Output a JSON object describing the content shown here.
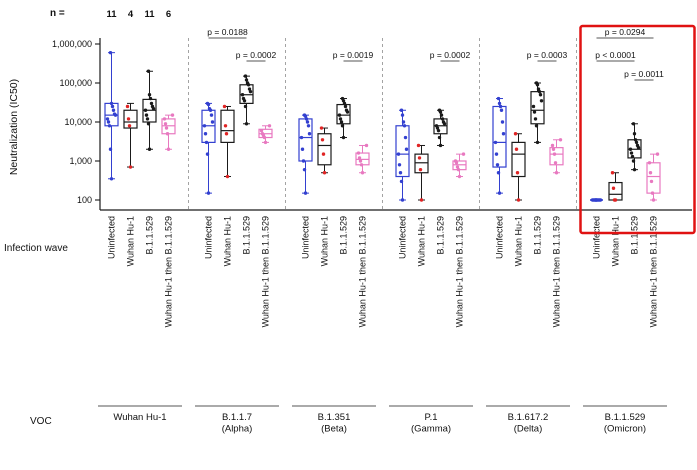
{
  "figure": {
    "ylabel": "Neutralization (IC50)",
    "x_axis_label": "Infection wave",
    "voc_axis_label": "VOC",
    "n_label": "n =",
    "n_values": [
      "11",
      "4",
      "11",
      "6"
    ],
    "y_ticks": [
      "100",
      "1,000",
      "10,000",
      "100,000",
      "1,000,000"
    ]
  },
  "colors": {
    "uninfected": "#3340d0",
    "black_box": "#1a1a1a",
    "wuhan_points": "#e02424",
    "b11529_points": "#1a1a1a",
    "combo": "#e879c0",
    "highlight": "#e01212",
    "separator": "#9a9a9a",
    "bracket": "#555555",
    "axis": "#1a1a1a"
  },
  "chart_data": {
    "type": "boxplot-log",
    "title": "",
    "ylabel": "Neutralization (IC50)",
    "xlabel": "Infection wave",
    "y_scale": "log10",
    "ylim": [
      100,
      1000000
    ],
    "y_tick_values": [
      100,
      1000,
      10000,
      100000,
      1000000
    ],
    "categories": [
      "Uninfected",
      "Wuhan Hu-1",
      "B.1.1.529",
      "Wuhan Hu-1 then B.1.1.529"
    ],
    "n_per_category": [
      11,
      4,
      11,
      6
    ],
    "category_box_colors": [
      "#3340d0",
      "#1a1a1a",
      "#1a1a1a",
      "#e879c0"
    ],
    "category_point_colors": [
      "#3340d0",
      "#e02424",
      "#1a1a1a",
      "#e879c0"
    ],
    "groups": [
      {
        "voc": [
          "Wuhan Hu-1"
        ],
        "highlighted": false,
        "boxes": [
          {
            "stats": [
              350,
              8000,
              15000,
              30000,
              600000
            ],
            "points": [
              350,
              2000,
              8000,
              10000,
              12000,
              15000,
              16000,
              20000,
              25000,
              30000,
              600000
            ]
          },
          {
            "stats": [
              700,
              7000,
              10000,
              20000,
              30000
            ],
            "points": [
              700,
              8000,
              12000,
              25000
            ]
          },
          {
            "stats": [
              2000,
              10000,
              20000,
              38000,
              200000
            ],
            "points": [
              2000,
              9000,
              12000,
              15000,
              20000,
              22000,
              25000,
              30000,
              40000,
              50000,
              200000
            ]
          },
          {
            "stats": [
              2000,
              5000,
              8000,
              12000,
              15000
            ],
            "points": [
              2000,
              5000,
              7000,
              9000,
              12000,
              15000
            ]
          }
        ]
      },
      {
        "voc": [
          "B.1.1.7",
          "(Alpha)"
        ],
        "highlighted": false,
        "boxes": [
          {
            "stats": [
              150,
              3000,
              8000,
              20000,
              30000
            ],
            "points": [
              150,
              1500,
              3000,
              5000,
              8000,
              10000,
              15000,
              20000,
              22000,
              28000,
              30000
            ]
          },
          {
            "stats": [
              400,
              3000,
              6000,
              20000,
              25000
            ],
            "points": [
              400,
              5000,
              8000,
              25000
            ]
          },
          {
            "stats": [
              9000,
              30000,
              50000,
              90000,
              150000
            ],
            "points": [
              9000,
              25000,
              35000,
              40000,
              50000,
              60000,
              70000,
              90000,
              100000,
              120000,
              150000
            ]
          },
          {
            "stats": [
              3000,
              4000,
              5000,
              6500,
              8000
            ],
            "points": [
              3000,
              4000,
              4500,
              5000,
              6000,
              8000
            ]
          }
        ]
      },
      {
        "voc": [
          "B.1.351",
          "(Beta)"
        ],
        "highlighted": false,
        "boxes": [
          {
            "stats": [
              150,
              1000,
              4000,
              12000,
              15000
            ],
            "points": [
              150,
              600,
              1000,
              2000,
              4000,
              5000,
              8000,
              10000,
              12000,
              14000,
              15000
            ]
          },
          {
            "stats": [
              500,
              800,
              2500,
              5000,
              7000
            ],
            "points": [
              500,
              1500,
              3500,
              7000
            ]
          },
          {
            "stats": [
              4000,
              9000,
              15000,
              28000,
              40000
            ],
            "points": [
              4000,
              8000,
              10000,
              12000,
              15000,
              18000,
              20000,
              25000,
              30000,
              35000,
              40000
            ]
          },
          {
            "stats": [
              500,
              800,
              1100,
              1600,
              2500
            ],
            "points": [
              500,
              800,
              1000,
              1200,
              1600,
              2500
            ]
          }
        ]
      },
      {
        "voc": [
          "P.1",
          "(Gamma)"
        ],
        "highlighted": false,
        "boxes": [
          {
            "stats": [
              100,
              400,
              1500,
              8000,
              20000
            ],
            "points": [
              100,
              300,
              500,
              800,
              1500,
              2000,
              4000,
              8000,
              10000,
              15000,
              20000
            ]
          },
          {
            "stats": [
              100,
              500,
              900,
              1500,
              2500
            ],
            "points": [
              100,
              600,
              1200,
              2500
            ]
          },
          {
            "stats": [
              2500,
              5000,
              8000,
              12000,
              20000
            ],
            "points": [
              2500,
              4000,
              6000,
              7000,
              8000,
              9000,
              10000,
              12000,
              15000,
              18000,
              20000
            ]
          },
          {
            "stats": [
              400,
              600,
              800,
              1000,
              1500
            ],
            "points": [
              400,
              600,
              700,
              900,
              1000,
              1500
            ]
          }
        ]
      },
      {
        "voc": [
          "B.1.617.2",
          "(Delta)"
        ],
        "highlighted": false,
        "boxes": [
          {
            "stats": [
              150,
              700,
              3000,
              25000,
              40000
            ],
            "points": [
              150,
              500,
              800,
              1500,
              3000,
              5000,
              10000,
              20000,
              25000,
              30000,
              40000
            ]
          },
          {
            "stats": [
              100,
              400,
              1500,
              3000,
              5000
            ],
            "points": [
              100,
              500,
              2000,
              5000
            ]
          },
          {
            "stats": [
              3000,
              9000,
              20000,
              60000,
              100000
            ],
            "points": [
              3000,
              8000,
              12000,
              18000,
              25000,
              35000,
              50000,
              60000,
              70000,
              90000,
              100000
            ]
          },
          {
            "stats": [
              500,
              800,
              1500,
              2200,
              3500
            ],
            "points": [
              500,
              900,
              1500,
              2000,
              2500,
              3500
            ]
          }
        ]
      },
      {
        "voc": [
          "B.1.1.529",
          "(Omicron)"
        ],
        "highlighted": true,
        "boxes": [
          {
            "stats": [
              100,
              100,
              100,
              100,
              100
            ],
            "points": [
              100,
              100,
              100,
              100,
              100,
              100,
              100,
              100,
              100,
              100,
              100
            ]
          },
          {
            "stats": [
              100,
              100,
              140,
              280,
              500
            ],
            "points": [
              100,
              100,
              200,
              500
            ]
          },
          {
            "stats": [
              600,
              1200,
              2000,
              3500,
              9000
            ],
            "points": [
              600,
              1000,
              1300,
              1600,
              2000,
              2200,
              2500,
              3000,
              3500,
              5000,
              9000
            ]
          },
          {
            "stats": [
              100,
              150,
              400,
              900,
              1500
            ],
            "points": [
              100,
              150,
              300,
              500,
              900,
              1500
            ]
          }
        ]
      }
    ],
    "brackets": [
      {
        "group": 1,
        "from": 0,
        "to": 2,
        "level": 0,
        "label": "p = 0.0188"
      },
      {
        "group": 1,
        "from": 2,
        "to": 3,
        "level": 1,
        "label": "p = 0.0002"
      },
      {
        "group": 2,
        "from": 2,
        "to": 3,
        "level": 1,
        "label": "p = 0.0019"
      },
      {
        "group": 3,
        "from": 2,
        "to": 3,
        "level": 1,
        "label": "p = 0.0002"
      },
      {
        "group": 4,
        "from": 2,
        "to": 3,
        "level": 1,
        "label": "p = 0.0003"
      },
      {
        "group": 5,
        "from": 0,
        "to": 3,
        "level": 0,
        "label": "p = 0.0294"
      },
      {
        "group": 5,
        "from": 0,
        "to": 2,
        "level": 1,
        "label": "p < 0.0001"
      },
      {
        "group": 5,
        "from": 2,
        "to": 3,
        "level": 2,
        "label": "p = 0.0011"
      }
    ],
    "legend": "none",
    "grid": false
  }
}
